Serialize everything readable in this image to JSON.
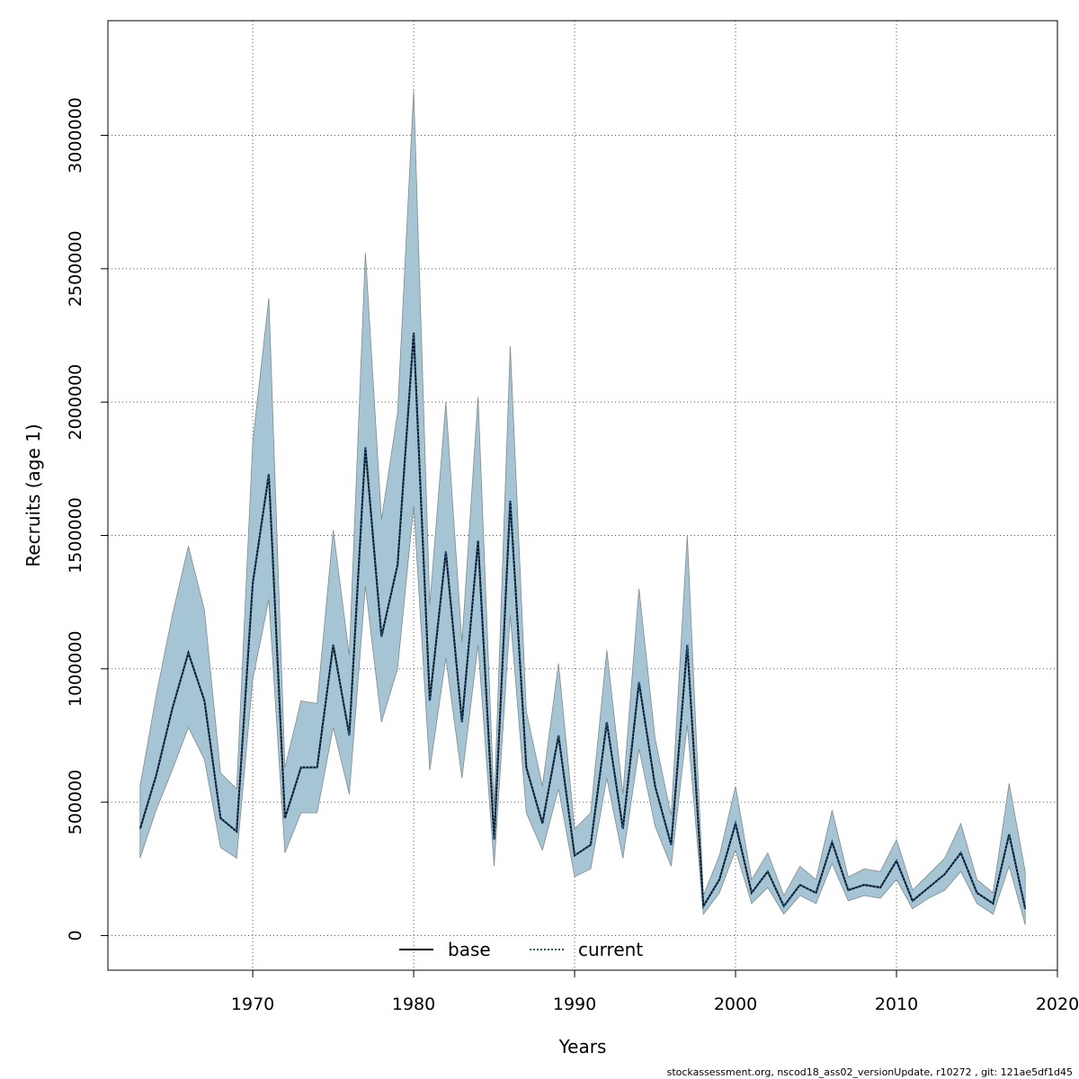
{
  "chart_data": {
    "type": "area",
    "xlabel": "Years",
    "ylabel": "Recruits (age 1)",
    "xlim": [
      1961,
      2020
    ],
    "ylim": [
      -130000,
      3430000
    ],
    "x_ticks": [
      1970,
      1980,
      1990,
      2000,
      2010,
      2020
    ],
    "x_tick_labels": [
      "1970",
      "1980",
      "1990",
      "2000",
      "2010",
      "2020"
    ],
    "y_ticks": [
      0,
      500000,
      1000000,
      1500000,
      2000000,
      2500000,
      3000000
    ],
    "y_tick_labels": [
      "0",
      "500000",
      "1000000",
      "1500000",
      "2000000",
      "2500000",
      "3000000"
    ],
    "grid": true,
    "legend": {
      "position": "bottom-center",
      "entries": [
        "base",
        "current"
      ]
    },
    "colors": {
      "band": "#a5c4d4",
      "band_edge": "#7f8c8d",
      "base": "#000000",
      "current": "#1f5f8b"
    },
    "x": [
      1963,
      1964,
      1965,
      1966,
      1967,
      1968,
      1969,
      1970,
      1971,
      1972,
      1973,
      1974,
      1975,
      1976,
      1977,
      1978,
      1979,
      1980,
      1981,
      1982,
      1983,
      1984,
      1985,
      1986,
      1987,
      1988,
      1989,
      1990,
      1991,
      1992,
      1993,
      1994,
      1995,
      1996,
      1997,
      1998,
      1999,
      2000,
      2001,
      2002,
      2003,
      2004,
      2005,
      2006,
      2007,
      2008,
      2009,
      2010,
      2011,
      2012,
      2013,
      2014,
      2015,
      2016,
      2017,
      2018
    ],
    "series": [
      {
        "name": "base",
        "style": "solid",
        "values": [
          400000,
          600000,
          850000,
          1060000,
          880000,
          440000,
          390000,
          1320000,
          1730000,
          440000,
          630000,
          630000,
          1090000,
          750000,
          1830000,
          1120000,
          1390000,
          2260000,
          880000,
          1440000,
          800000,
          1480000,
          360000,
          1630000,
          630000,
          420000,
          750000,
          300000,
          340000,
          800000,
          400000,
          950000,
          560000,
          340000,
          1090000,
          110000,
          210000,
          420000,
          160000,
          240000,
          110000,
          190000,
          160000,
          350000,
          170000,
          190000,
          180000,
          280000,
          130000,
          180000,
          230000,
          310000,
          160000,
          120000,
          380000,
          100000
        ]
      },
      {
        "name": "current",
        "style": "dotted",
        "values": [
          400000,
          600000,
          850000,
          1060000,
          880000,
          440000,
          390000,
          1320000,
          1730000,
          440000,
          630000,
          630000,
          1090000,
          750000,
          1830000,
          1120000,
          1390000,
          2260000,
          880000,
          1440000,
          800000,
          1480000,
          360000,
          1630000,
          630000,
          420000,
          750000,
          300000,
          340000,
          800000,
          400000,
          950000,
          560000,
          340000,
          1090000,
          110000,
          210000,
          420000,
          160000,
          240000,
          110000,
          190000,
          160000,
          350000,
          170000,
          190000,
          180000,
          280000,
          130000,
          180000,
          230000,
          310000,
          160000,
          120000,
          380000,
          100000
        ]
      }
    ],
    "ci_upper": [
      560000,
      900000,
      1200000,
      1460000,
      1220000,
      610000,
      550000,
      1850000,
      2390000,
      630000,
      880000,
      870000,
      1520000,
      1050000,
      2560000,
      1560000,
      1960000,
      3170000,
      1240000,
      2000000,
      1100000,
      2020000,
      490000,
      2210000,
      840000,
      560000,
      1020000,
      400000,
      460000,
      1070000,
      530000,
      1300000,
      740000,
      450000,
      1500000,
      150000,
      300000,
      560000,
      210000,
      310000,
      150000,
      260000,
      210000,
      470000,
      220000,
      250000,
      240000,
      360000,
      170000,
      230000,
      290000,
      420000,
      210000,
      160000,
      570000,
      240000
    ],
    "ci_lower": [
      290000,
      470000,
      620000,
      780000,
      660000,
      330000,
      290000,
      960000,
      1260000,
      310000,
      460000,
      460000,
      780000,
      530000,
      1310000,
      800000,
      1000000,
      1610000,
      620000,
      1040000,
      590000,
      1090000,
      260000,
      1200000,
      460000,
      320000,
      550000,
      220000,
      250000,
      590000,
      290000,
      700000,
      410000,
      260000,
      790000,
      80000,
      160000,
      320000,
      120000,
      180000,
      80000,
      150000,
      120000,
      270000,
      130000,
      150000,
      140000,
      210000,
      100000,
      140000,
      170000,
      240000,
      120000,
      80000,
      260000,
      40000
    ]
  },
  "footer": "stockassessment.org, nscod18_ass02_versionUpdate, r10272 , git: 121ae5df1d45"
}
